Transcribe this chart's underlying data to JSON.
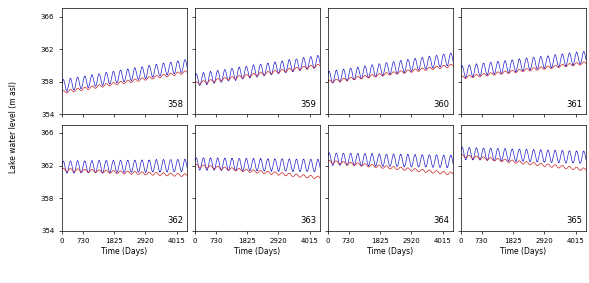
{
  "panels": [
    358,
    359,
    360,
    361,
    362,
    363,
    364,
    365
  ],
  "nrows": 2,
  "ncols": 4,
  "xlim": [
    0,
    4380
  ],
  "ylim": [
    354,
    367
  ],
  "xticks": [
    0,
    730,
    1825,
    2920,
    4015
  ],
  "yticks": [
    354,
    358,
    362,
    366
  ],
  "xlabel": "Time (Days)",
  "ylabel": "Lake water level (m asl)",
  "blue_color": "#2222cc",
  "red_color": "#cc2222",
  "n_points": 4380,
  "blue_seasonal_amplitude": 0.75,
  "red_seasonal_amplitude": 0.18,
  "seasonal_period": 250,
  "noise_amplitude": 0.06,
  "panel_configs": [
    {
      "blue_start": 357.5,
      "blue_end": 360.0,
      "red_start": 356.7,
      "red_end": 359.2
    },
    {
      "blue_start": 358.2,
      "blue_end": 360.5,
      "red_start": 357.8,
      "red_end": 360.0
    },
    {
      "blue_start": 358.5,
      "blue_end": 360.8,
      "red_start": 358.0,
      "red_end": 360.0
    },
    {
      "blue_start": 359.2,
      "blue_end": 361.0,
      "red_start": 358.5,
      "red_end": 360.3
    },
    {
      "blue_start": 361.8,
      "blue_end": 362.0,
      "red_start": 361.5,
      "red_end": 360.8
    },
    {
      "blue_start": 362.2,
      "blue_end": 362.0,
      "red_start": 362.0,
      "red_end": 360.5
    },
    {
      "blue_start": 362.8,
      "blue_end": 362.5,
      "red_start": 362.5,
      "red_end": 361.0
    },
    {
      "blue_start": 363.5,
      "blue_end": 363.0,
      "red_start": 363.2,
      "red_end": 361.5
    }
  ]
}
